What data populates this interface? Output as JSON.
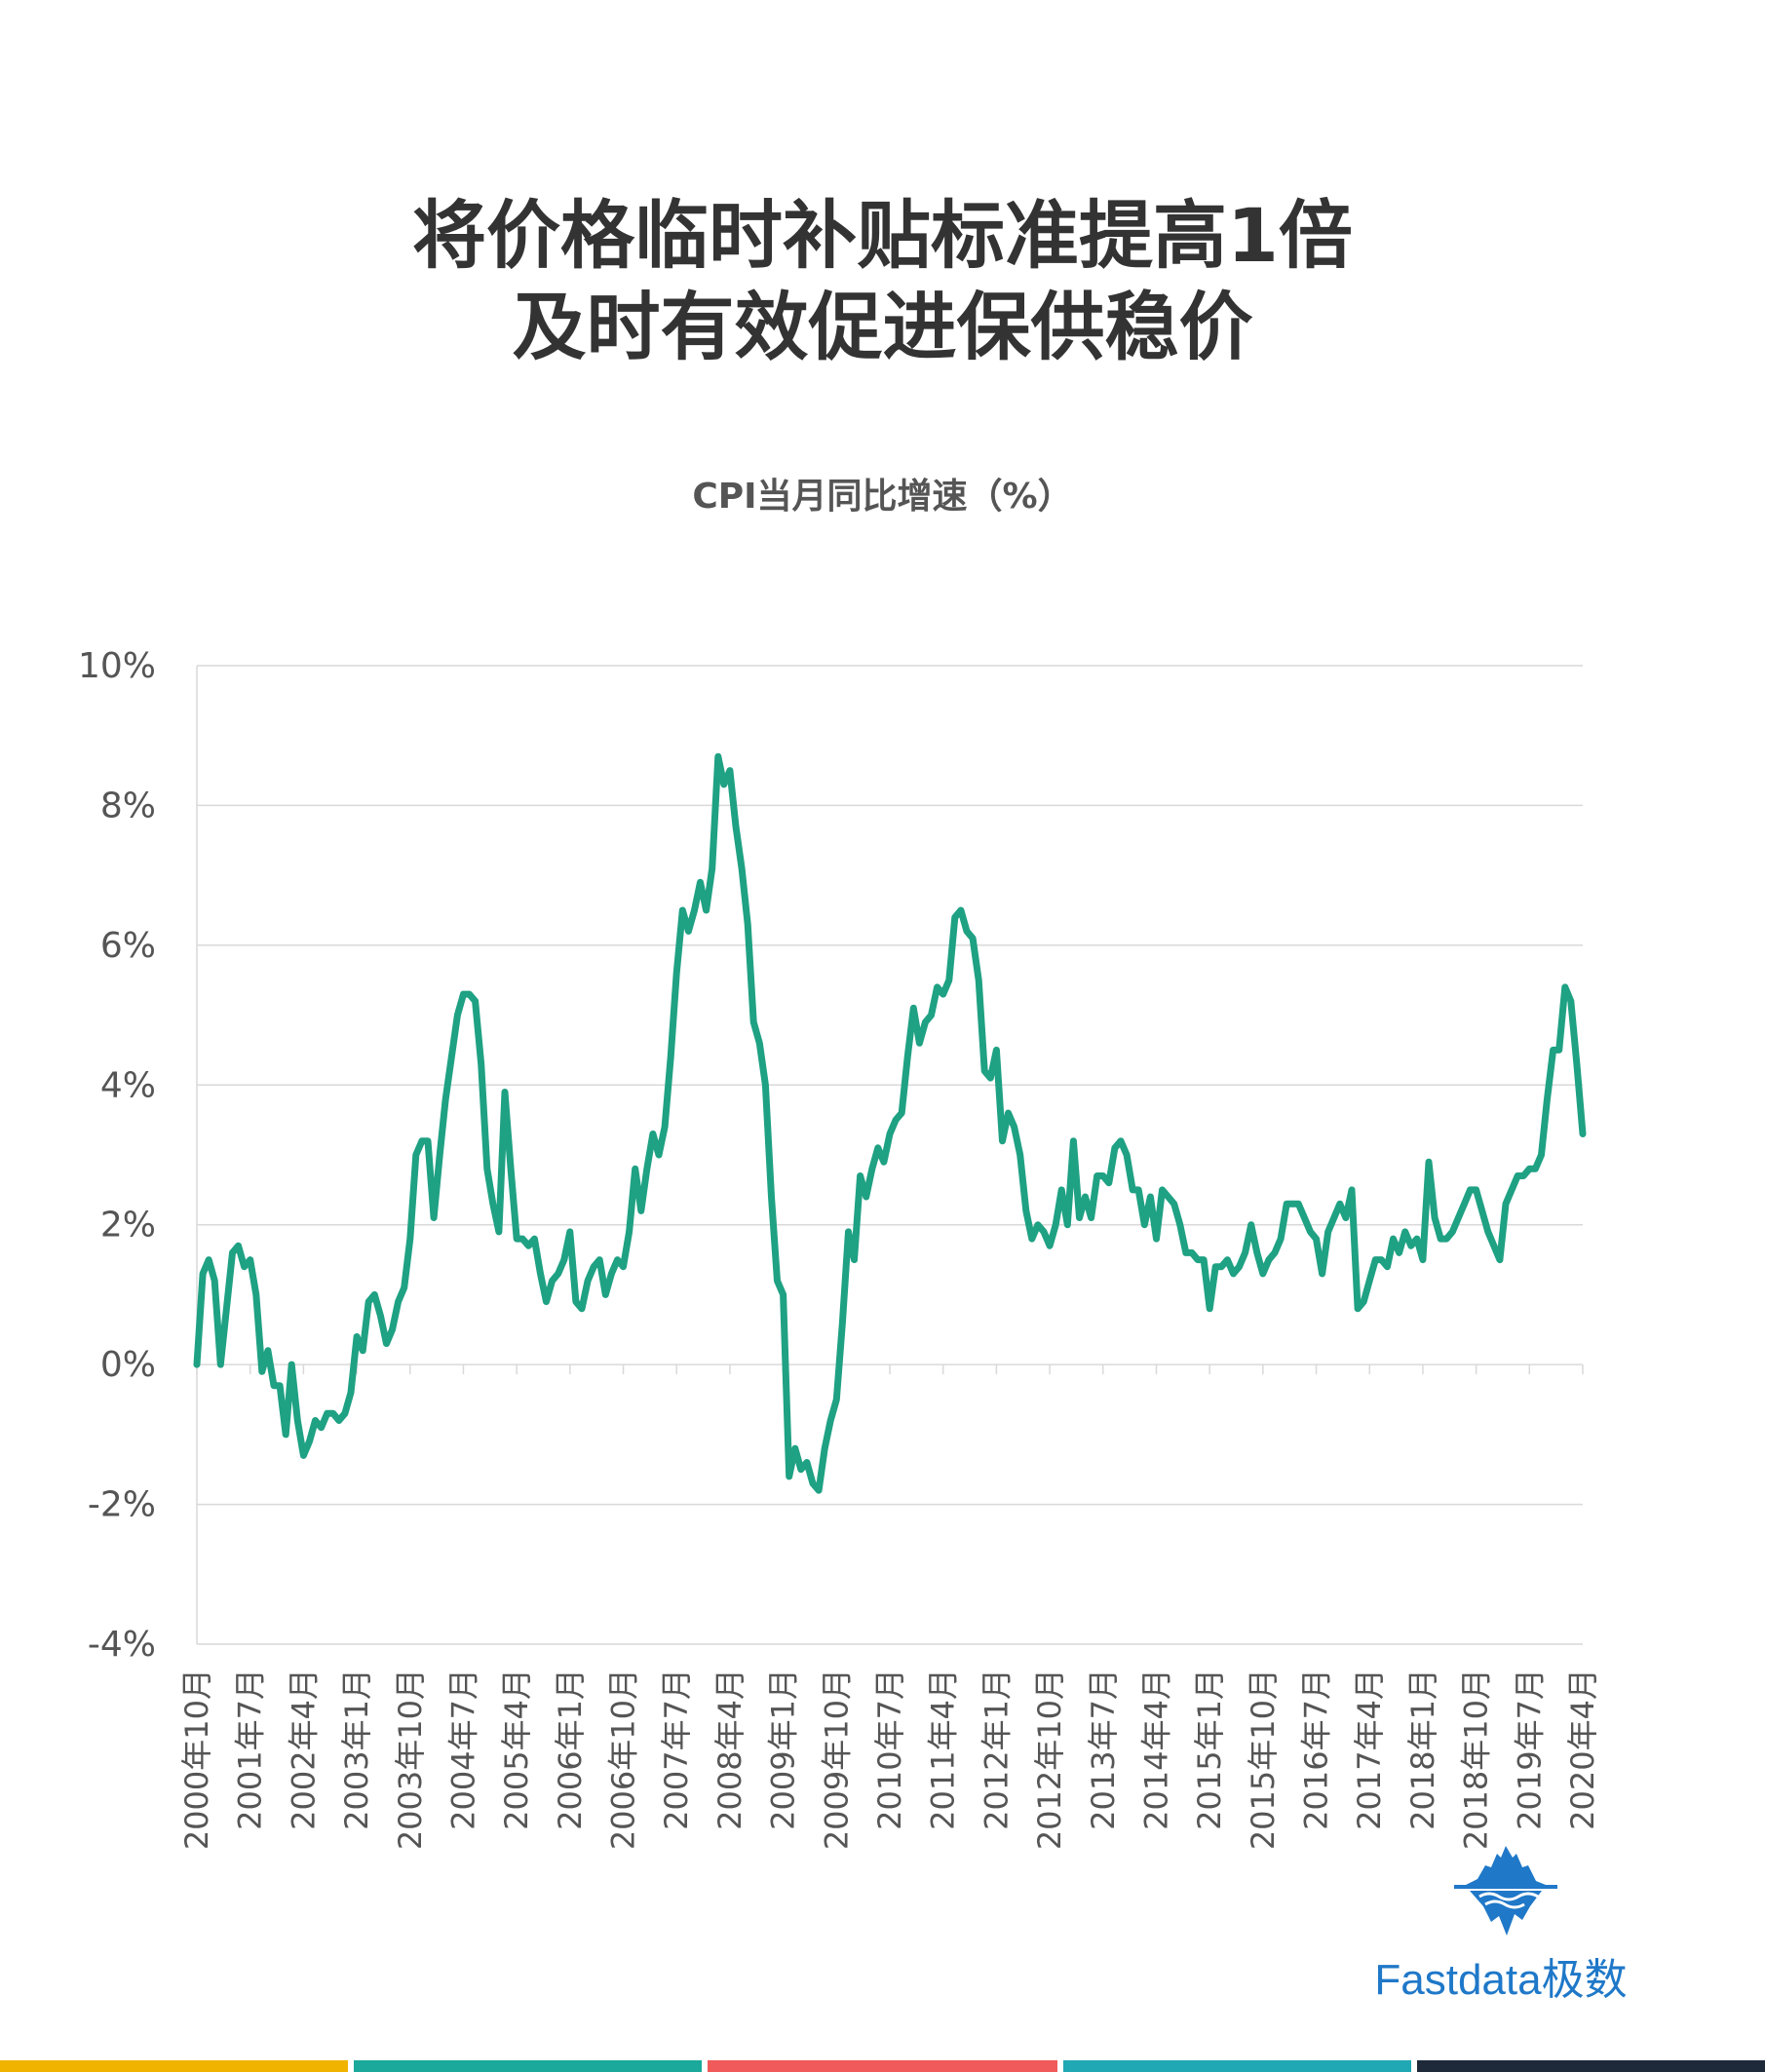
{
  "title": {
    "line1": "将价格临时补贴标准提高1倍",
    "line2": "及时有效促进保供稳价"
  },
  "subtitle": "CPI当月同比增速（%）",
  "logo": {
    "text": "Fastdata极数",
    "icon": "iceberg-icon",
    "color": "#1f78c8"
  },
  "colors": {
    "line": "#1fa183",
    "grid": "#d9d9d9",
    "axis_text": "#555555",
    "bottom_bar": [
      "#f0b400",
      "#1aa99a",
      "#f05a5a",
      "#20a8b4",
      "#1e2a3a"
    ]
  },
  "chart_data": {
    "type": "line",
    "ylim": [
      -4,
      10
    ],
    "yticks": [
      10,
      8,
      6,
      4,
      2,
      0,
      -2,
      -4
    ],
    "ytick_labels": [
      "10%",
      "8%",
      "6%",
      "4%",
      "2%",
      "0%",
      "-2%",
      "-4%"
    ],
    "grid": true,
    "x_start": "2000-10",
    "x_end": "2020-04",
    "xtick_labels": [
      "2000年10月",
      "2001年7月",
      "2002年4月",
      "2003年1月",
      "2003年10月",
      "2004年7月",
      "2005年4月",
      "2006年1月",
      "2006年10月",
      "2007年7月",
      "2008年4月",
      "2009年1月",
      "2009年10月",
      "2010年7月",
      "2011年4月",
      "2012年1月",
      "2012年10月",
      "2013年7月",
      "2014年4月",
      "2015年1月",
      "2015年10月",
      "2016年7月",
      "2017年4月",
      "2018年1月",
      "2018年10月",
      "2019年7月",
      "2020年4月"
    ],
    "series": [
      {
        "values": [
          0.0,
          1.3,
          1.5,
          1.2,
          0.0,
          0.8,
          1.6,
          1.7,
          1.4,
          1.5,
          1.0,
          -0.1,
          0.2,
          -0.3,
          -0.3,
          -1.0,
          0.0,
          -0.8,
          -1.3,
          -1.1,
          -0.8,
          -0.9,
          -0.7,
          -0.7,
          -0.8,
          -0.7,
          -0.4,
          0.4,
          0.2,
          0.9,
          1.0,
          0.7,
          0.3,
          0.5,
          0.9,
          1.1,
          1.8,
          3.0,
          3.2,
          3.2,
          2.1,
          3.0,
          3.8,
          4.4,
          5.0,
          5.3,
          5.3,
          5.2,
          4.3,
          2.8,
          2.3,
          1.9,
          3.9,
          2.8,
          1.8,
          1.8,
          1.7,
          1.8,
          1.3,
          0.9,
          1.2,
          1.3,
          1.5,
          1.9,
          0.9,
          0.8,
          1.2,
          1.4,
          1.5,
          1.0,
          1.3,
          1.5,
          1.4,
          1.9,
          2.8,
          2.2,
          2.8,
          3.3,
          3.0,
          3.4,
          4.4,
          5.6,
          6.5,
          6.2,
          6.5,
          6.9,
          6.5,
          7.1,
          8.7,
          8.3,
          8.5,
          7.7,
          7.1,
          6.3,
          4.9,
          4.6,
          4.0,
          2.4,
          1.2,
          1.0,
          -1.6,
          -1.2,
          -1.5,
          -1.4,
          -1.7,
          -1.8,
          -1.2,
          -0.8,
          -0.5,
          0.6,
          1.9,
          1.5,
          2.7,
          2.4,
          2.8,
          3.1,
          2.9,
          3.3,
          3.5,
          3.6,
          4.4,
          5.1,
          4.6,
          4.9,
          5.0,
          5.4,
          5.3,
          5.5,
          6.4,
          6.5,
          6.2,
          6.1,
          5.5,
          4.2,
          4.1,
          4.5,
          3.2,
          3.6,
          3.4,
          3.0,
          2.2,
          1.8,
          2.0,
          1.9,
          1.7,
          2.0,
          2.5,
          2.0,
          3.2,
          2.1,
          2.4,
          2.1,
          2.7,
          2.7,
          2.6,
          3.1,
          3.2,
          3.0,
          2.5,
          2.5,
          2.0,
          2.4,
          1.8,
          2.5,
          2.4,
          2.3,
          2.0,
          1.6,
          1.6,
          1.5,
          1.5,
          0.8,
          1.4,
          1.4,
          1.5,
          1.3,
          1.4,
          1.6,
          2.0,
          1.6,
          1.3,
          1.5,
          1.6,
          1.8,
          2.3,
          2.3,
          2.3,
          2.1,
          1.9,
          1.8,
          1.3,
          1.9,
          2.1,
          2.3,
          2.1,
          2.5,
          0.8,
          0.9,
          1.2,
          1.5,
          1.5,
          1.4,
          1.8,
          1.6,
          1.9,
          1.7,
          1.8,
          1.5,
          2.9,
          2.1,
          1.8,
          1.8,
          1.9,
          2.1,
          2.3,
          2.5,
          2.5,
          2.2,
          1.9,
          1.7,
          1.5,
          2.3,
          2.5,
          2.7,
          2.7,
          2.8,
          2.8,
          3.0,
          3.8,
          4.5,
          4.5,
          5.4,
          5.2,
          4.3,
          3.3
        ]
      }
    ]
  }
}
